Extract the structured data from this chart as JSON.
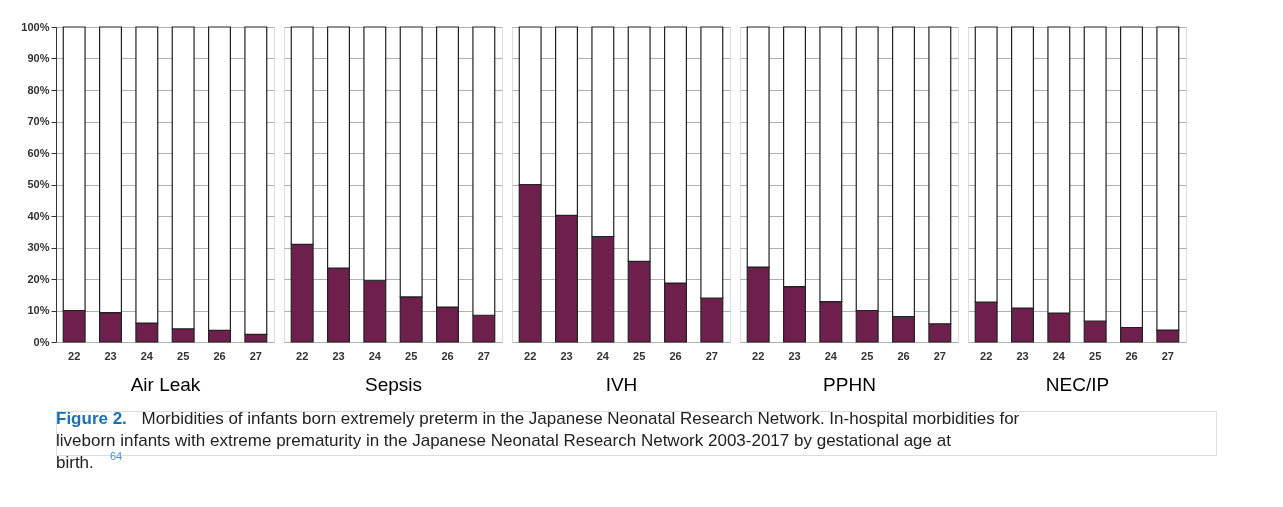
{
  "chart_data": [
    {
      "type": "bar",
      "stacked": true,
      "xlabel": "Air Leak",
      "categories": [
        "22",
        "23",
        "24",
        "25",
        "26",
        "27"
      ],
      "series": [
        {
          "color": "#6e1f4b",
          "values": [
            10,
            9.3,
            6,
            4.2,
            3.7,
            2.4
          ]
        },
        {
          "color": "#ffffff",
          "values": [
            90,
            90.7,
            94,
            95.8,
            96.3,
            97.6
          ]
        }
      ],
      "ylim": [
        0,
        100
      ],
      "yticks": [
        {
          "value": 0,
          "label": "0%"
        },
        {
          "value": 10,
          "label": "10%"
        },
        {
          "value": 20,
          "label": "20%"
        },
        {
          "value": 30,
          "label": "30%"
        },
        {
          "value": 40,
          "label": "40%"
        },
        {
          "value": 50,
          "label": "50%"
        },
        {
          "value": 60,
          "label": "60%"
        },
        {
          "value": 70,
          "label": "70%"
        },
        {
          "value": 80,
          "label": "80%"
        },
        {
          "value": 90,
          "label": "90%"
        },
        {
          "value": 100,
          "label": "100%"
        }
      ],
      "grid": "y",
      "annotations": [
        "Figure 2.",
        "Morbidities of infants born extremely preterm in the Japanese Neonatal Research Network. In-hospital morbidities for liveborn infants with extreme prematurity in the Japanese Neonatal Research Network 2003-2017 by gestational age at birth.$^{64}$"
      ]
    },
    {
      "type": "bar",
      "stacked": true,
      "xlabel": "Sepsis",
      "categories": [
        "22",
        "23",
        "24",
        "25",
        "26",
        "27"
      ],
      "series": [
        {
          "color": "#6e1f4b",
          "values": [
            31,
            23.5,
            19.6,
            14.3,
            11.1,
            8.5
          ]
        },
        {
          "color": "#ffffff",
          "values": [
            69,
            76.5,
            80.4,
            85.7,
            88.9,
            91.5
          ]
        }
      ],
      "ylim": [
        0,
        100
      ],
      "yticks": [
        {
          "value": 0,
          "label": null
        },
        {
          "value": 10,
          "label": null
        },
        {
          "value": 20,
          "label": null
        },
        {
          "value": 30,
          "label": null
        },
        {
          "value": 40,
          "label": null
        },
        {
          "value": 50,
          "label": null
        },
        {
          "value": 60,
          "label": null
        },
        {
          "value": 70,
          "label": null
        },
        {
          "value": 80,
          "label": null
        },
        {
          "value": 90,
          "label": null
        },
        {
          "value": 100,
          "label": null
        }
      ],
      "grid": "y",
      "tick_labels": "x"
    },
    {
      "type": "bar",
      "stacked": true,
      "xlabel": "IVH",
      "categories": [
        "22",
        "23",
        "24",
        "25",
        "26",
        "27"
      ],
      "series": [
        {
          "color": "#6e1f4b",
          "values": [
            50,
            40.2,
            33.5,
            25.6,
            18.7,
            13.9
          ]
        },
        {
          "color": "#ffffff",
          "values": [
            50,
            59.8,
            66.5,
            74.4,
            81.3,
            86.1
          ]
        }
      ],
      "ylim": [
        0,
        100
      ],
      "yticks": [
        {
          "value": 0,
          "label": null
        },
        {
          "value": 10,
          "label": null
        },
        {
          "value": 20,
          "label": null
        },
        {
          "value": 30,
          "label": null
        },
        {
          "value": 40,
          "label": null
        },
        {
          "value": 50,
          "label": null
        },
        {
          "value": 60,
          "label": null
        },
        {
          "value": 70,
          "label": null
        },
        {
          "value": 80,
          "label": null
        },
        {
          "value": 90,
          "label": null
        },
        {
          "value": 100,
          "label": null
        }
      ],
      "grid": "y",
      "tick_labels": "x"
    },
    {
      "type": "bar",
      "stacked": true,
      "xlabel": "PPHN",
      "categories": [
        "22",
        "23",
        "24",
        "25",
        "26",
        "27"
      ],
      "series": [
        {
          "color": "#6e1f4b",
          "values": [
            23.8,
            17.6,
            12.8,
            10,
            8.1,
            5.8
          ]
        },
        {
          "color": "#ffffff",
          "values": [
            76.2,
            82.4,
            87.2,
            90,
            91.9,
            94.2
          ]
        }
      ],
      "ylim": [
        0,
        100
      ],
      "yticks": [
        {
          "value": 0,
          "label": null
        },
        {
          "value": 10,
          "label": null
        },
        {
          "value": 20,
          "label": null
        },
        {
          "value": 30,
          "label": null
        },
        {
          "value": 40,
          "label": null
        },
        {
          "value": 50,
          "label": null
        },
        {
          "value": 60,
          "label": null
        },
        {
          "value": 70,
          "label": null
        },
        {
          "value": 80,
          "label": null
        },
        {
          "value": 90,
          "label": null
        },
        {
          "value": 100,
          "label": null
        }
      ],
      "grid": "y",
      "tick_labels": "x"
    },
    {
      "type": "bar",
      "stacked": true,
      "xlabel": "NEC/IP",
      "categories": [
        "22",
        "23",
        "24",
        "25",
        "26",
        "27"
      ],
      "series": [
        {
          "color": "#6e1f4b",
          "values": [
            12.7,
            10.8,
            9.2,
            6.6,
            4.6,
            3.8
          ]
        },
        {
          "color": "#ffffff",
          "values": [
            87.3,
            89.2,
            90.8,
            93.4,
            95.4,
            96.2
          ]
        }
      ],
      "ylim": [
        0,
        100
      ],
      "yticks": [
        {
          "value": 0,
          "label": null
        },
        {
          "value": 10,
          "label": null
        },
        {
          "value": 20,
          "label": null
        },
        {
          "value": 30,
          "label": null
        },
        {
          "value": 40,
          "label": null
        },
        {
          "value": 50,
          "label": null
        },
        {
          "value": 60,
          "label": null
        },
        {
          "value": 70,
          "label": null
        },
        {
          "value": 80,
          "label": null
        },
        {
          "value": 90,
          "label": null
        },
        {
          "value": 100,
          "label": null
        }
      ],
      "grid": "y",
      "tick_labels": "x"
    }
  ]
}
